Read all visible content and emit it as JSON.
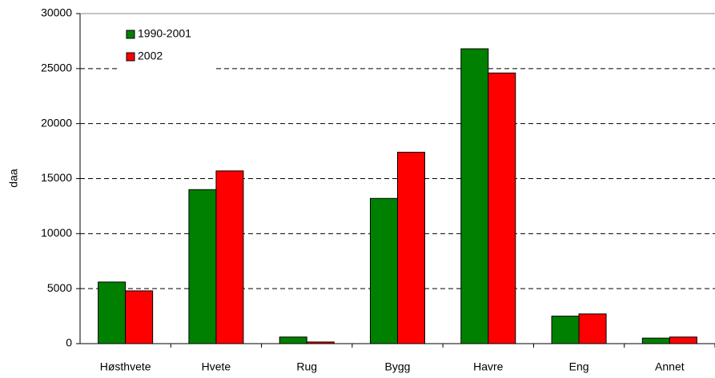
{
  "chart_data": {
    "type": "bar",
    "y_label": "daa",
    "categories": [
      "Høsthvete",
      "Hvete",
      "Rug",
      "Bygg",
      "Havre",
      "Eng",
      "Annet"
    ],
    "series": [
      {
        "name": "1990-2001",
        "color": "#008000",
        "values": [
          5600,
          14000,
          600,
          13200,
          26800,
          2500,
          500
        ]
      },
      {
        "name": "2002",
        "color": "#ff0000",
        "values": [
          4800,
          15700,
          150,
          17400,
          24600,
          2700,
          600
        ]
      }
    ],
    "ylim": [
      0,
      30000
    ],
    "yticks": [
      0,
      5000,
      10000,
      15000,
      20000,
      25000,
      30000
    ],
    "grid": true,
    "legend": "top-left"
  }
}
